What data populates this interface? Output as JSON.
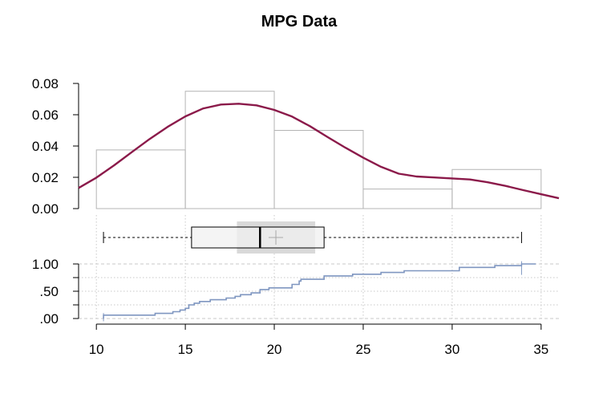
{
  "chart_data": [
    {
      "type": "histogram",
      "title": "MPG Data",
      "xlim": [
        9,
        36
      ],
      "ylim": [
        0,
        0.08
      ],
      "yticks": [
        0,
        0.02,
        0.04,
        0.06,
        0.08
      ],
      "ytick_labels": [
        "0.00",
        "0.02",
        "0.04",
        "0.06",
        "0.08"
      ],
      "bins": [
        {
          "from": 10,
          "to": 15,
          "density": 0.0375
        },
        {
          "from": 15,
          "to": 20,
          "density": 0.075
        },
        {
          "from": 20,
          "to": 25,
          "density": 0.05
        },
        {
          "from": 25,
          "to": 30,
          "density": 0.0125
        },
        {
          "from": 30,
          "to": 35,
          "density": 0.025
        }
      ],
      "density_curve": {
        "color": "#8b1a4a",
        "x": [
          9.0,
          10.0,
          11.0,
          12.0,
          13.0,
          14.0,
          15.0,
          16.0,
          17.0,
          18.0,
          19.0,
          20.0,
          21.0,
          22.0,
          23.0,
          24.0,
          25.0,
          26.0,
          27.0,
          28.0,
          29.0,
          30.0,
          31.0,
          32.0,
          33.0,
          34.0,
          35.0,
          36.0
        ],
        "y": [
          0.0132,
          0.0198,
          0.0277,
          0.0362,
          0.0445,
          0.0522,
          0.0589,
          0.064,
          0.0665,
          0.067,
          0.066,
          0.0631,
          0.0588,
          0.0527,
          0.0457,
          0.0389,
          0.0325,
          0.0267,
          0.0223,
          0.0205,
          0.0199,
          0.0193,
          0.0186,
          0.0168,
          0.0145,
          0.0118,
          0.0092,
          0.0066
        ]
      }
    },
    {
      "type": "boxplot",
      "whisker_low": 10.4,
      "q1": 15.35,
      "median": 19.2,
      "q3": 22.8,
      "whisker_high": 33.9,
      "mean": 20.09,
      "mean_ci": [
        17.9,
        22.3
      ]
    },
    {
      "type": "ecdf",
      "color": "#7f96c0",
      "xlim": [
        9,
        36
      ],
      "ylim": [
        0,
        1
      ],
      "yticks": [
        0,
        0.25,
        0.5,
        0.75,
        1
      ],
      "ytick_labels": [
        ".00",
        "",
        ".50",
        "",
        "1.00"
      ],
      "xticks": [
        10,
        15,
        20,
        25,
        30,
        35
      ],
      "xtick_labels": [
        "10",
        "15",
        "20",
        "25",
        "30",
        "35"
      ],
      "steps_x": [
        10.4,
        13.3,
        14.3,
        14.7,
        15.0,
        15.2,
        15.5,
        15.8,
        16.4,
        17.3,
        17.8,
        18.1,
        18.7,
        19.2,
        19.7,
        21.0,
        21.4,
        21.5,
        22.8,
        24.4,
        26.0,
        27.3,
        30.4,
        32.4,
        33.9
      ],
      "steps_y": [
        0.0625,
        0.09375,
        0.125,
        0.15625,
        0.1875,
        0.25,
        0.28125,
        0.3125,
        0.34375,
        0.375,
        0.40625,
        0.4375,
        0.46875,
        0.53125,
        0.5625,
        0.625,
        0.6875,
        0.71875,
        0.78125,
        0.8125,
        0.84375,
        0.875,
        0.9375,
        0.96875,
        1.0
      ]
    }
  ]
}
